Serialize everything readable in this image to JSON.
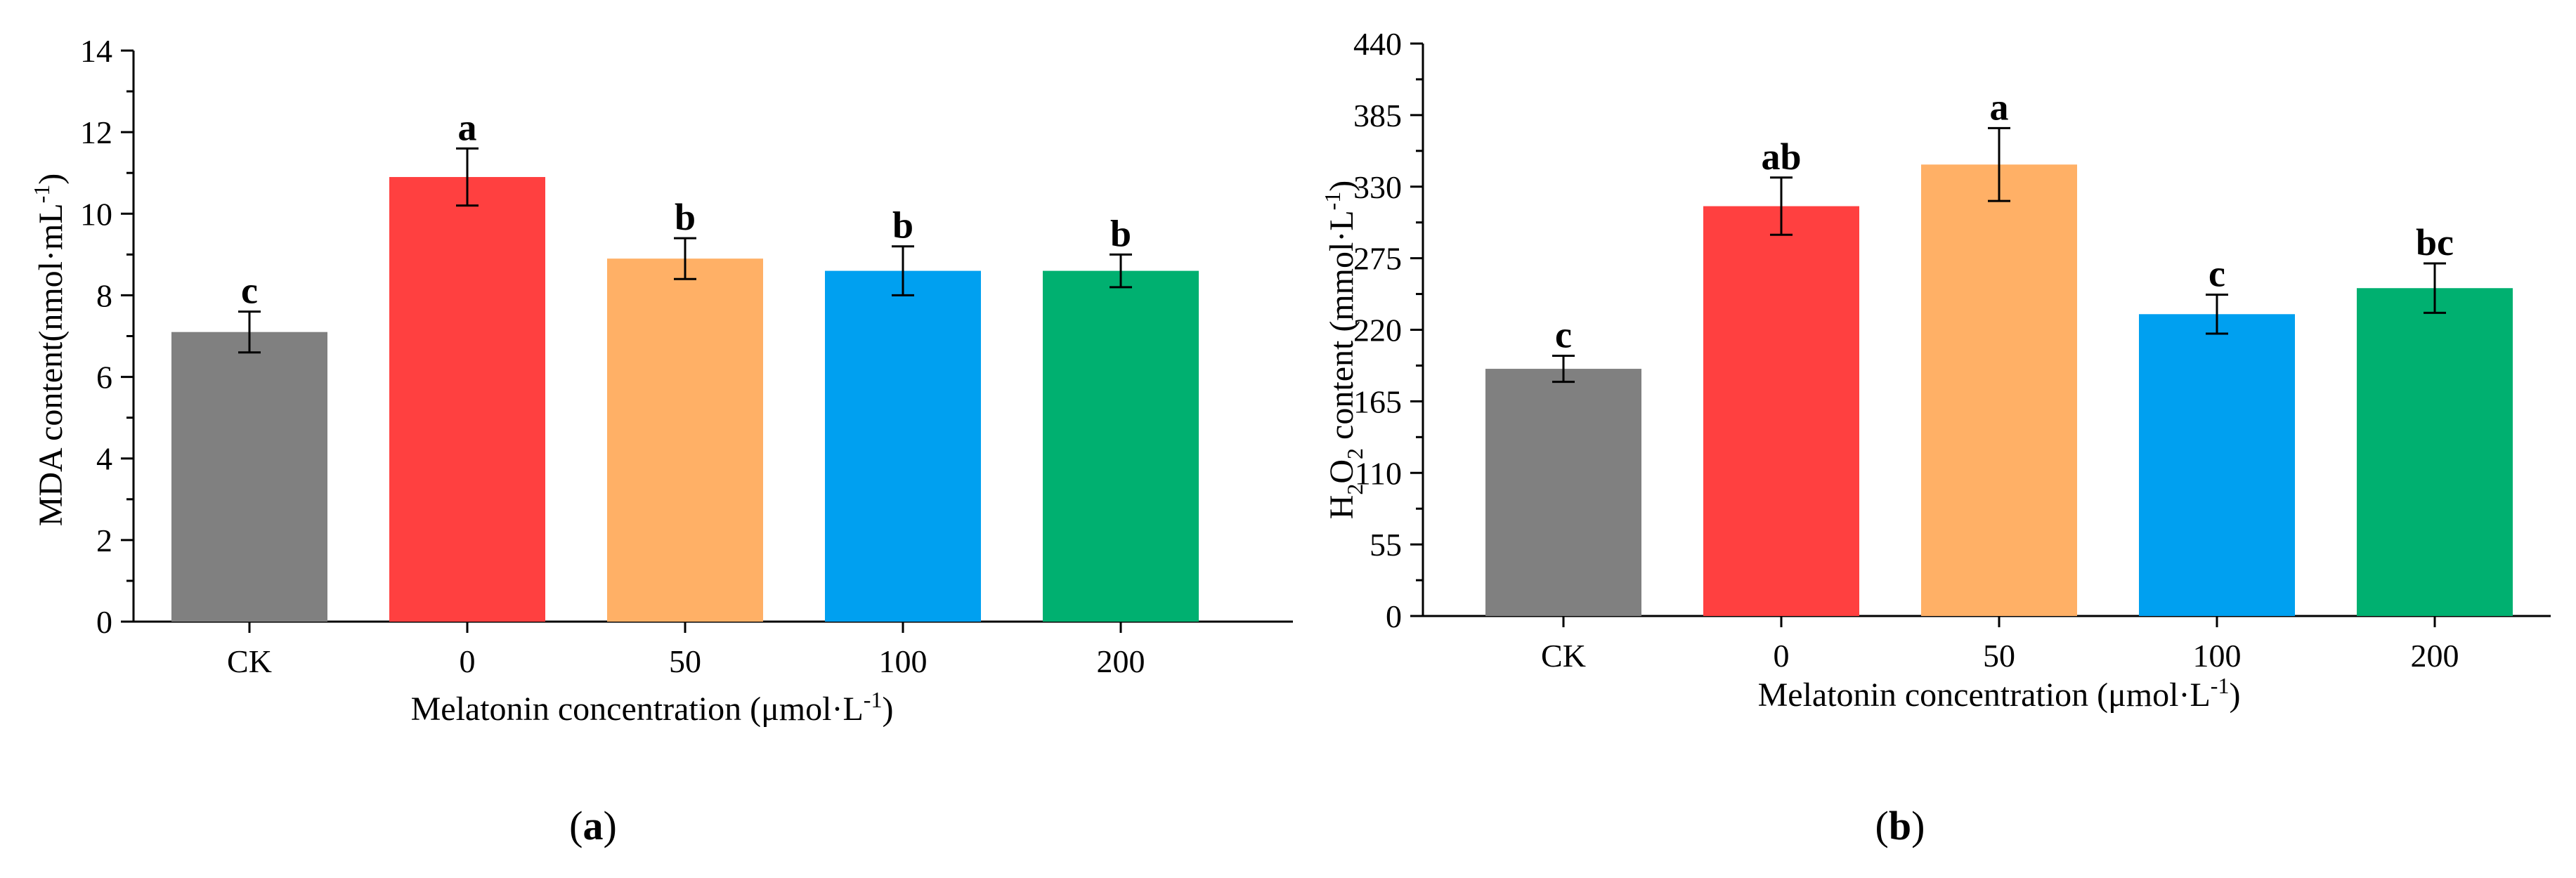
{
  "chart_data": [
    {
      "type": "bar",
      "panel_label": "a",
      "categories": [
        "CK",
        "0",
        "50",
        "100",
        "200"
      ],
      "values": [
        7.1,
        10.9,
        8.9,
        8.6,
        8.6
      ],
      "errors": [
        0.5,
        0.7,
        0.5,
        0.6,
        0.4
      ],
      "significance": [
        "c",
        "a",
        "b",
        "b",
        "b"
      ],
      "colors": [
        "#808080",
        "#ff4040",
        "#ffb066",
        "#00a0f0",
        "#00b070"
      ],
      "ylim": [
        0,
        14
      ],
      "yticks": [
        "0",
        "2",
        "4",
        "6",
        "8",
        "10",
        "12",
        "14"
      ],
      "ylabel": "MDA content(nmol·mL",
      "ylabel_sup": "-1",
      "ylabel_end": ")",
      "xlabel": "Melatonin concentration (μmol·L",
      "xlabel_sup": "-1",
      "xlabel_end": ")"
    },
    {
      "type": "bar",
      "panel_label": "b",
      "categories": [
        "CK",
        "0",
        "50",
        "100",
        "200"
      ],
      "values": [
        190,
        315,
        347,
        232,
        252
      ],
      "errors": [
        10,
        22,
        28,
        15,
        19
      ],
      "significance": [
        "c",
        "ab",
        "a",
        "c",
        "bc"
      ],
      "colors": [
        "#808080",
        "#ff4040",
        "#ffb066",
        "#00a0f0",
        "#00b070"
      ],
      "ylim": [
        0,
        440
      ],
      "yticks": [
        "0",
        "55",
        "110",
        "165",
        "220",
        "275",
        "330",
        "385",
        "440"
      ],
      "ylabel_parts": [
        "H",
        "2",
        "O",
        "2",
        " content (mmol·L",
        "-1",
        ")"
      ],
      "xlabel": "Melatonin concentration (μmol·L",
      "xlabel_sup": "-1",
      "xlabel_end": ")"
    }
  ]
}
